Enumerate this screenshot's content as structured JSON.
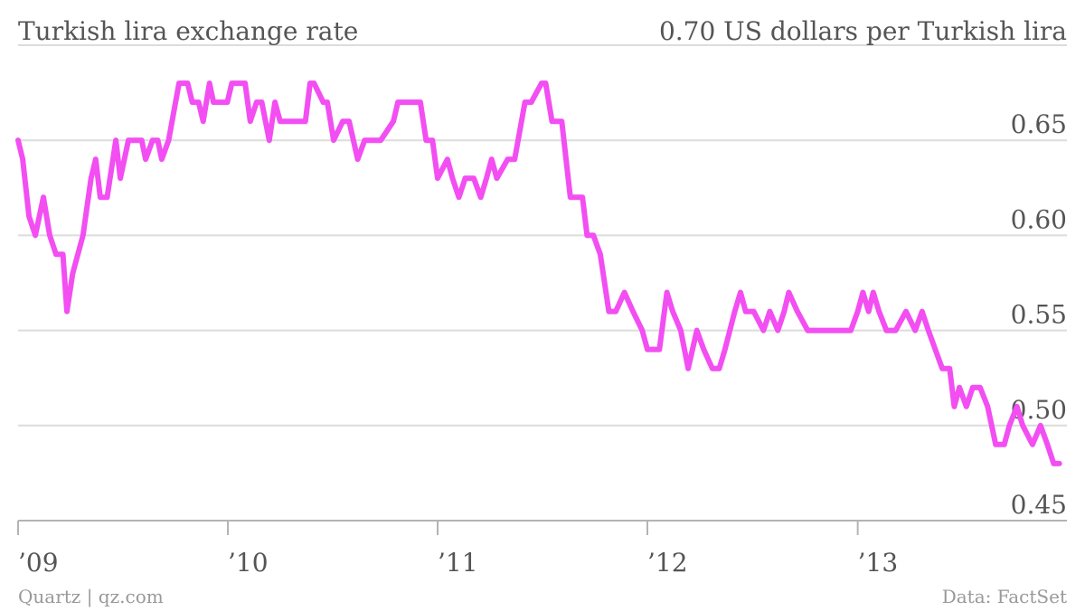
{
  "header": {
    "title": "Turkish lira exchange rate",
    "top_label": "0.70 US dollars per Turkish lira"
  },
  "footer": {
    "credit": "Quartz | qz.com",
    "source": "Data: FactSet"
  },
  "chart_data": {
    "type": "line",
    "title": "Turkish lira exchange rate",
    "xlabel": "",
    "ylabel": "",
    "unit_label": "0.70 US dollars per Turkish lira",
    "ylim": [
      0.45,
      0.7
    ],
    "y_ticks": [
      {
        "value": 0.45,
        "label": "0.45"
      },
      {
        "value": 0.5,
        "label": "0.50"
      },
      {
        "value": 0.55,
        "label": "0.55"
      },
      {
        "value": 0.6,
        "label": "0.60"
      },
      {
        "value": 0.65,
        "label": "0.65"
      }
    ],
    "y_top_gridline": 0.7,
    "x_range": [
      "2009-01-01",
      "2013-12-31"
    ],
    "x_ticks": [
      {
        "date": "2009-01-01",
        "label": "’09"
      },
      {
        "date": "2010-01-01",
        "label": "’10"
      },
      {
        "date": "2011-01-01",
        "label": "’11"
      },
      {
        "date": "2012-01-01",
        "label": "’12"
      },
      {
        "date": "2013-01-01",
        "label": "’13"
      }
    ],
    "grid": true,
    "legend": "none",
    "series": [
      {
        "color": "#f24ef2",
        "points": [
          [
            "2009-01-01",
            0.65
          ],
          [
            "2009-01-09",
            0.64
          ],
          [
            "2009-01-20",
            0.61
          ],
          [
            "2009-01-31",
            0.6
          ],
          [
            "2009-02-14",
            0.62
          ],
          [
            "2009-02-25",
            0.6
          ],
          [
            "2009-03-08",
            0.59
          ],
          [
            "2009-03-20",
            0.59
          ],
          [
            "2009-03-27",
            0.56
          ],
          [
            "2009-04-06",
            0.58
          ],
          [
            "2009-04-24",
            0.6
          ],
          [
            "2009-05-08",
            0.63
          ],
          [
            "2009-05-16",
            0.64
          ],
          [
            "2009-05-24",
            0.62
          ],
          [
            "2009-06-05",
            0.62
          ],
          [
            "2009-06-20",
            0.65
          ],
          [
            "2009-06-28",
            0.63
          ],
          [
            "2009-07-12",
            0.65
          ],
          [
            "2009-08-04",
            0.65
          ],
          [
            "2009-08-11",
            0.64
          ],
          [
            "2009-08-23",
            0.65
          ],
          [
            "2009-09-01",
            0.65
          ],
          [
            "2009-09-08",
            0.64
          ],
          [
            "2009-09-20",
            0.65
          ],
          [
            "2009-10-08",
            0.68
          ],
          [
            "2009-10-23",
            0.68
          ],
          [
            "2009-10-31",
            0.67
          ],
          [
            "2009-11-11",
            0.67
          ],
          [
            "2009-11-19",
            0.66
          ],
          [
            "2009-11-30",
            0.68
          ],
          [
            "2009-12-07",
            0.67
          ],
          [
            "2009-12-31",
            0.67
          ],
          [
            "2010-01-08",
            0.68
          ],
          [
            "2010-01-31",
            0.68
          ],
          [
            "2010-02-09",
            0.66
          ],
          [
            "2010-02-20",
            0.67
          ],
          [
            "2010-03-01",
            0.67
          ],
          [
            "2010-03-14",
            0.65
          ],
          [
            "2010-03-24",
            0.67
          ],
          [
            "2010-04-02",
            0.66
          ],
          [
            "2010-04-21",
            0.66
          ],
          [
            "2010-04-28",
            0.66
          ],
          [
            "2010-05-16",
            0.66
          ],
          [
            "2010-05-24",
            0.68
          ],
          [
            "2010-05-31",
            0.68
          ],
          [
            "2010-06-16",
            0.67
          ],
          [
            "2010-06-23",
            0.67
          ],
          [
            "2010-07-04",
            0.65
          ],
          [
            "2010-07-20",
            0.66
          ],
          [
            "2010-07-31",
            0.66
          ],
          [
            "2010-08-15",
            0.64
          ],
          [
            "2010-08-27",
            0.65
          ],
          [
            "2010-09-12",
            0.65
          ],
          [
            "2010-09-24",
            0.65
          ],
          [
            "2010-10-16",
            0.66
          ],
          [
            "2010-10-24",
            0.67
          ],
          [
            "2010-11-14",
            0.67
          ],
          [
            "2010-12-02",
            0.67
          ],
          [
            "2010-12-12",
            0.65
          ],
          [
            "2010-12-23",
            0.65
          ],
          [
            "2011-01-01",
            0.63
          ],
          [
            "2011-01-18",
            0.64
          ],
          [
            "2011-01-27",
            0.63
          ],
          [
            "2011-02-07",
            0.62
          ],
          [
            "2011-02-18",
            0.63
          ],
          [
            "2011-03-05",
            0.63
          ],
          [
            "2011-03-17",
            0.62
          ],
          [
            "2011-03-27",
            0.63
          ],
          [
            "2011-04-05",
            0.64
          ],
          [
            "2011-04-14",
            0.63
          ],
          [
            "2011-05-03",
            0.64
          ],
          [
            "2011-05-15",
            0.64
          ],
          [
            "2011-06-02",
            0.67
          ],
          [
            "2011-06-13",
            0.67
          ],
          [
            "2011-07-01",
            0.68
          ],
          [
            "2011-07-08",
            0.68
          ],
          [
            "2011-07-19",
            0.66
          ],
          [
            "2011-08-05",
            0.66
          ],
          [
            "2011-08-20",
            0.62
          ],
          [
            "2011-09-01",
            0.62
          ],
          [
            "2011-09-10",
            0.62
          ],
          [
            "2011-09-18",
            0.6
          ],
          [
            "2011-09-29",
            0.6
          ],
          [
            "2011-10-11",
            0.59
          ],
          [
            "2011-10-26",
            0.56
          ],
          [
            "2011-11-07",
            0.56
          ],
          [
            "2011-11-22",
            0.57
          ],
          [
            "2011-12-07",
            0.56
          ],
          [
            "2011-12-23",
            0.55
          ],
          [
            "2012-01-01",
            0.54
          ],
          [
            "2012-01-11",
            0.54
          ],
          [
            "2012-01-22",
            0.54
          ],
          [
            "2012-02-04",
            0.57
          ],
          [
            "2012-02-14",
            0.56
          ],
          [
            "2012-02-28",
            0.55
          ],
          [
            "2012-03-12",
            0.53
          ],
          [
            "2012-03-27",
            0.55
          ],
          [
            "2012-04-08",
            0.54
          ],
          [
            "2012-04-23",
            0.53
          ],
          [
            "2012-05-05",
            0.53
          ],
          [
            "2012-05-15",
            0.54
          ],
          [
            "2012-06-01",
            0.56
          ],
          [
            "2012-06-11",
            0.57
          ],
          [
            "2012-06-20",
            0.56
          ],
          [
            "2012-07-04",
            0.56
          ],
          [
            "2012-07-21",
            0.55
          ],
          [
            "2012-08-01",
            0.56
          ],
          [
            "2012-08-15",
            0.55
          ],
          [
            "2012-08-26",
            0.56
          ],
          [
            "2012-09-03",
            0.57
          ],
          [
            "2012-09-18",
            0.56
          ],
          [
            "2012-10-06",
            0.55
          ],
          [
            "2012-10-18",
            0.55
          ],
          [
            "2012-11-03",
            0.55
          ],
          [
            "2012-11-22",
            0.55
          ],
          [
            "2012-12-05",
            0.55
          ],
          [
            "2012-12-20",
            0.55
          ],
          [
            "2013-01-01",
            0.56
          ],
          [
            "2013-01-10",
            0.57
          ],
          [
            "2013-01-20",
            0.56
          ],
          [
            "2013-01-28",
            0.57
          ],
          [
            "2013-02-07",
            0.56
          ],
          [
            "2013-02-20",
            0.55
          ],
          [
            "2013-03-08",
            0.55
          ],
          [
            "2013-03-26",
            0.56
          ],
          [
            "2013-04-11",
            0.55
          ],
          [
            "2013-04-23",
            0.56
          ],
          [
            "2013-05-04",
            0.55
          ],
          [
            "2013-05-16",
            0.54
          ],
          [
            "2013-05-28",
            0.53
          ],
          [
            "2013-06-10",
            0.53
          ],
          [
            "2013-06-18",
            0.51
          ],
          [
            "2013-06-27",
            0.52
          ],
          [
            "2013-07-09",
            0.51
          ],
          [
            "2013-07-20",
            0.52
          ],
          [
            "2013-08-02",
            0.52
          ],
          [
            "2013-08-15",
            0.51
          ],
          [
            "2013-08-29",
            0.49
          ],
          [
            "2013-09-13",
            0.49
          ],
          [
            "2013-09-22",
            0.5
          ],
          [
            "2013-10-05",
            0.51
          ],
          [
            "2013-10-15",
            0.5
          ],
          [
            "2013-11-01",
            0.49
          ],
          [
            "2013-11-15",
            0.5
          ],
          [
            "2013-11-27",
            0.49
          ],
          [
            "2013-12-08",
            0.48
          ],
          [
            "2013-12-18",
            0.48
          ]
        ]
      }
    ]
  }
}
